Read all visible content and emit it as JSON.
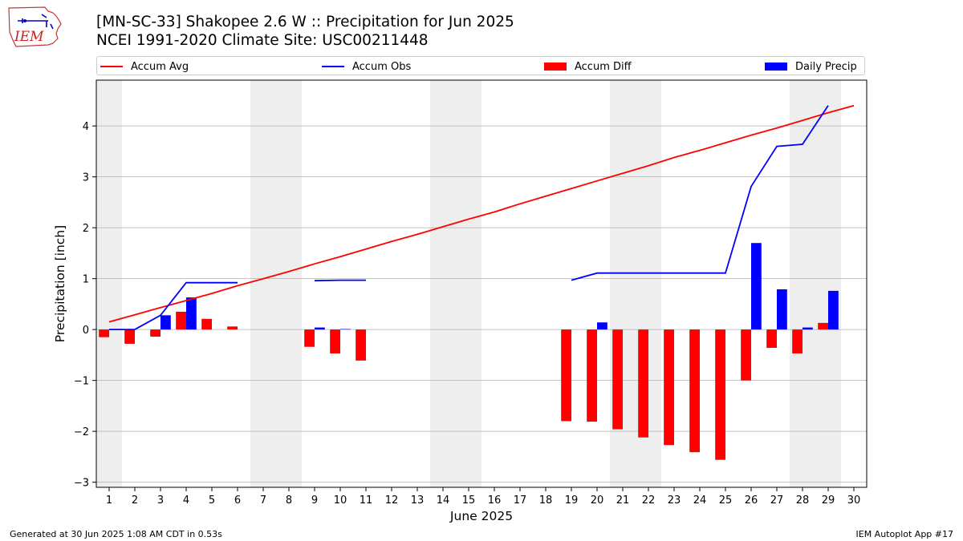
{
  "logo": {
    "text": "IEM"
  },
  "header": {
    "title_line1": "[MN-SC-33] Shakopee 2.6 W :: Precipitation for Jun 2025",
    "title_line2": "NCEI 1991-2020 Climate Site: USC00211448"
  },
  "footer": {
    "left": "Generated at 30 Jun 2025 1:08 AM CDT in 0.53s",
    "right": "IEM Autoplot App #17"
  },
  "colors": {
    "accum_avg": "#ff0000",
    "accum_obs": "#0000ff",
    "accum_diff": "#ff0000",
    "daily_precip": "#0000ff",
    "weekend_shade": "#eeeeee",
    "grid": "#b0b0b0"
  },
  "chart_data": {
    "type": "bar",
    "xlabel": "June 2025",
    "ylabel": "Precipitation [inch]",
    "xlim": [
      0.5,
      30.5
    ],
    "ylim": [
      -3.1,
      4.9
    ],
    "x_ticks": [
      1,
      2,
      3,
      4,
      5,
      6,
      7,
      8,
      9,
      10,
      11,
      12,
      13,
      14,
      15,
      16,
      17,
      18,
      19,
      20,
      21,
      22,
      23,
      24,
      25,
      26,
      27,
      28,
      29,
      30
    ],
    "y_ticks": [
      -3,
      -2,
      -1,
      0,
      1,
      2,
      3,
      4
    ],
    "y_tick_labels": [
      "−3",
      "−2",
      "−1",
      "0",
      "1",
      "2",
      "3",
      "4"
    ],
    "grid": "horizontal",
    "legend_placement": "top",
    "weekend_days": [
      1,
      7,
      8,
      14,
      15,
      21,
      22,
      28,
      29
    ],
    "series": [
      {
        "name": "Accum Avg",
        "kind": "line",
        "color": "#ff0000",
        "x": [
          1,
          2,
          3,
          4,
          5,
          6,
          7,
          8,
          9,
          10,
          11,
          12,
          13,
          14,
          15,
          16,
          17,
          18,
          19,
          20,
          21,
          22,
          23,
          24,
          25,
          26,
          27,
          28,
          29,
          30
        ],
        "values": [
          0.15,
          0.29,
          0.43,
          0.57,
          0.71,
          0.86,
          1.0,
          1.14,
          1.29,
          1.43,
          1.58,
          1.73,
          1.87,
          2.02,
          2.17,
          2.31,
          2.47,
          2.62,
          2.77,
          2.92,
          3.07,
          3.22,
          3.38,
          3.52,
          3.67,
          3.82,
          3.96,
          4.11,
          4.26,
          4.4
        ]
      },
      {
        "name": "Accum Obs",
        "kind": "line",
        "color": "#0000ff",
        "x": [
          1,
          2,
          3,
          4,
          5,
          6,
          7,
          8,
          9,
          10,
          11,
          12,
          13,
          14,
          15,
          16,
          17,
          18,
          19,
          20,
          21,
          22,
          23,
          24,
          25,
          26,
          27,
          28,
          29,
          30
        ],
        "values": [
          0.0,
          0.0,
          0.28,
          0.92,
          0.92,
          0.92,
          null,
          null,
          0.96,
          0.97,
          0.97,
          null,
          null,
          null,
          null,
          null,
          null,
          null,
          0.97,
          1.11,
          1.11,
          1.11,
          1.11,
          1.11,
          1.11,
          2.81,
          3.6,
          3.64,
          4.4,
          null
        ]
      },
      {
        "name": "Accum Diff",
        "kind": "bar",
        "color": "#ff0000",
        "offset": -0.2,
        "x": [
          1,
          2,
          3,
          4,
          5,
          6,
          9,
          10,
          11,
          19,
          20,
          21,
          22,
          23,
          24,
          25,
          26,
          27,
          28,
          29
        ],
        "values": [
          -0.15,
          -0.28,
          -0.14,
          0.35,
          0.21,
          0.06,
          -0.34,
          -0.47,
          -0.61,
          -1.8,
          -1.81,
          -1.96,
          -2.12,
          -2.27,
          -2.41,
          -2.56,
          -1.0,
          -0.36,
          -0.47,
          0.13
        ]
      },
      {
        "name": "Daily Precip",
        "kind": "bar",
        "color": "#0000ff",
        "offset": 0.2,
        "x": [
          1,
          2,
          3,
          4,
          9,
          10,
          11,
          19,
          20,
          26,
          27,
          28,
          29
        ],
        "values": [
          0.0,
          0.0,
          0.28,
          0.63,
          0.04,
          0.01,
          0.0,
          0.0,
          0.14,
          1.7,
          0.79,
          0.04,
          0.76
        ]
      }
    ]
  }
}
